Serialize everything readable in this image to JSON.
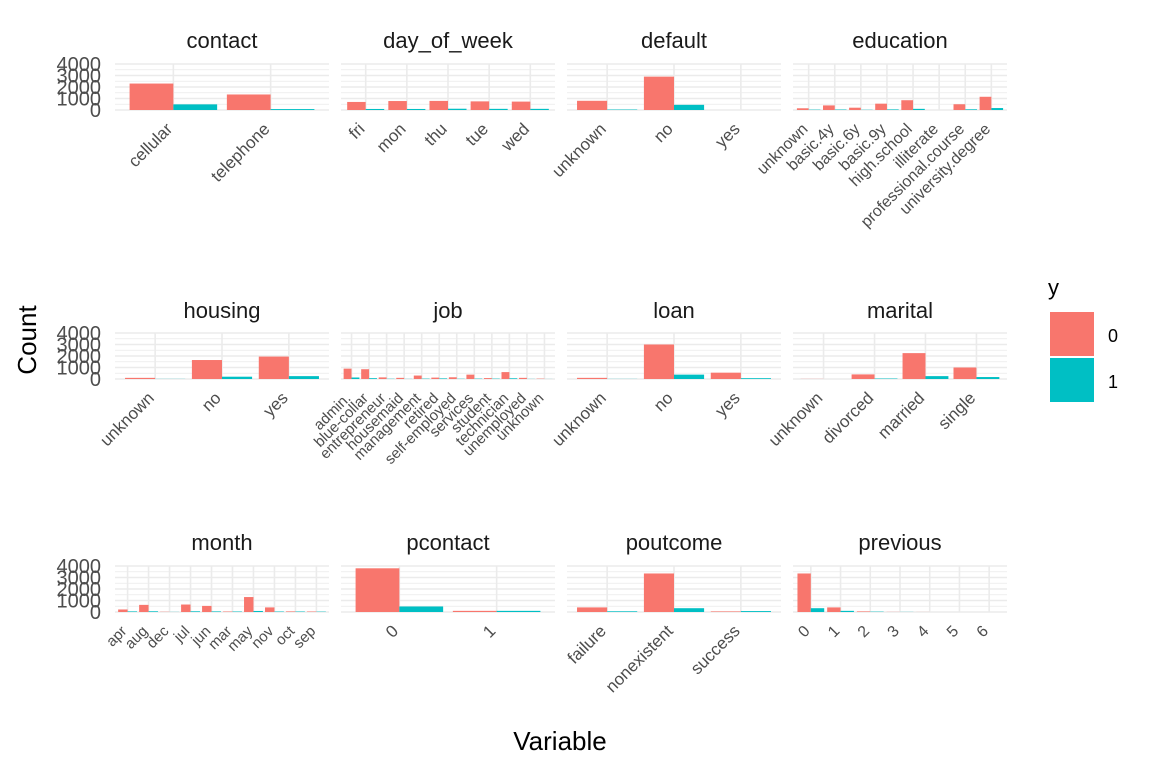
{
  "chart_data": {
    "type": "bar",
    "xlabel": "Variable",
    "ylabel": "Count",
    "ylim": [
      0,
      4000
    ],
    "y_ticks": [
      "0",
      "1000",
      "2000",
      "3000",
      "4000"
    ],
    "grid": true,
    "legend": {
      "title": "y",
      "placement": "right",
      "entries": [
        {
          "label": "0",
          "color": "#F8766D"
        },
        {
          "label": "1",
          "color": "#00BFC4"
        }
      ]
    },
    "panels": [
      {
        "name": "contact",
        "categories": [
          "cellular",
          "telephone"
        ],
        "series": [
          {
            "name": "0",
            "values": [
              2300,
              1350
            ]
          },
          {
            "name": "1",
            "values": [
              490,
              80
            ]
          }
        ]
      },
      {
        "name": "day_of_week",
        "categories": [
          "fri",
          "mon",
          "thu",
          "tue",
          "wed"
        ],
        "series": [
          {
            "name": "0",
            "values": [
              700,
              780,
              790,
              750,
              730
            ]
          },
          {
            "name": "1",
            "values": [
              90,
              90,
              110,
              100,
              100
            ]
          }
        ]
      },
      {
        "name": "default",
        "categories": [
          "unknown",
          "no",
          "yes"
        ],
        "series": [
          {
            "name": "0",
            "values": [
              800,
              2900,
              0
            ]
          },
          {
            "name": "1",
            "values": [
              40,
              450,
              0
            ]
          }
        ]
      },
      {
        "name": "education",
        "categories": [
          "unknown",
          "basic.4y",
          "basic.6y",
          "basic.9y",
          "high.school",
          "illiterate",
          "professional.course",
          "university.degree"
        ],
        "series": [
          {
            "name": "0",
            "values": [
              150,
              400,
              200,
              550,
              850,
              0,
              500,
              1150
            ]
          },
          {
            "name": "1",
            "values": [
              30,
              40,
              20,
              50,
              100,
              0,
              60,
              170
            ]
          }
        ]
      },
      {
        "name": "housing",
        "categories": [
          "unknown",
          "no",
          "yes"
        ],
        "series": [
          {
            "name": "0",
            "values": [
              100,
              1650,
              1950
            ]
          },
          {
            "name": "1",
            "values": [
              10,
              200,
              250
            ]
          }
        ]
      },
      {
        "name": "job",
        "categories": [
          "admin.",
          "blue-collar",
          "entrepreneur",
          "housemaid",
          "management",
          "retired",
          "self-employed",
          "services",
          "student",
          "technician",
          "unemployed",
          "unknown"
        ],
        "series": [
          {
            "name": "0",
            "values": [
              900,
              850,
              140,
              100,
              300,
              120,
              150,
              380,
              80,
              600,
              100,
              30
            ]
          },
          {
            "name": "1",
            "values": [
              130,
              70,
              20,
              10,
              30,
              50,
              20,
              30,
              30,
              60,
              10,
              5
            ]
          }
        ]
      },
      {
        "name": "loan",
        "categories": [
          "unknown",
          "no",
          "yes"
        ],
        "series": [
          {
            "name": "0",
            "values": [
              100,
              3000,
              550
            ]
          },
          {
            "name": "1",
            "values": [
              10,
              380,
              70
            ]
          }
        ]
      },
      {
        "name": "marital",
        "categories": [
          "unknown",
          "divorced",
          "married",
          "single"
        ],
        "series": [
          {
            "name": "0",
            "values": [
              10,
              400,
              2250,
              1000
            ]
          },
          {
            "name": "1",
            "values": [
              0,
              40,
              250,
              170
            ]
          }
        ]
      },
      {
        "name": "month",
        "categories": [
          "apr",
          "aug",
          "dec",
          "jul",
          "jun",
          "mar",
          "may",
          "nov",
          "oct",
          "sep"
        ],
        "series": [
          {
            "name": "0",
            "values": [
              220,
              620,
              20,
              650,
              530,
              40,
              1300,
              400,
              50,
              40
            ]
          },
          {
            "name": "1",
            "values": [
              50,
              60,
              10,
              60,
              50,
              40,
              90,
              40,
              40,
              30
            ]
          }
        ]
      },
      {
        "name": "pcontact",
        "categories": [
          "0",
          "1"
        ],
        "series": [
          {
            "name": "0",
            "values": [
              3800,
              100
            ]
          },
          {
            "name": "1",
            "values": [
              480,
              100
            ]
          }
        ]
      },
      {
        "name": "poutcome",
        "categories": [
          "failure",
          "nonexistent",
          "success"
        ],
        "series": [
          {
            "name": "0",
            "values": [
              400,
              3350,
              50
            ]
          },
          {
            "name": "1",
            "values": [
              60,
              330,
              80
            ]
          }
        ]
      },
      {
        "name": "previous",
        "categories": [
          "0",
          "1",
          "2",
          "3",
          "4",
          "5",
          "6"
        ],
        "series": [
          {
            "name": "0",
            "values": [
              3350,
              400,
              50,
              10,
              5,
              0,
              0
            ]
          },
          {
            "name": "1",
            "values": [
              330,
              100,
              30,
              10,
              0,
              0,
              0
            ]
          }
        ]
      }
    ]
  }
}
